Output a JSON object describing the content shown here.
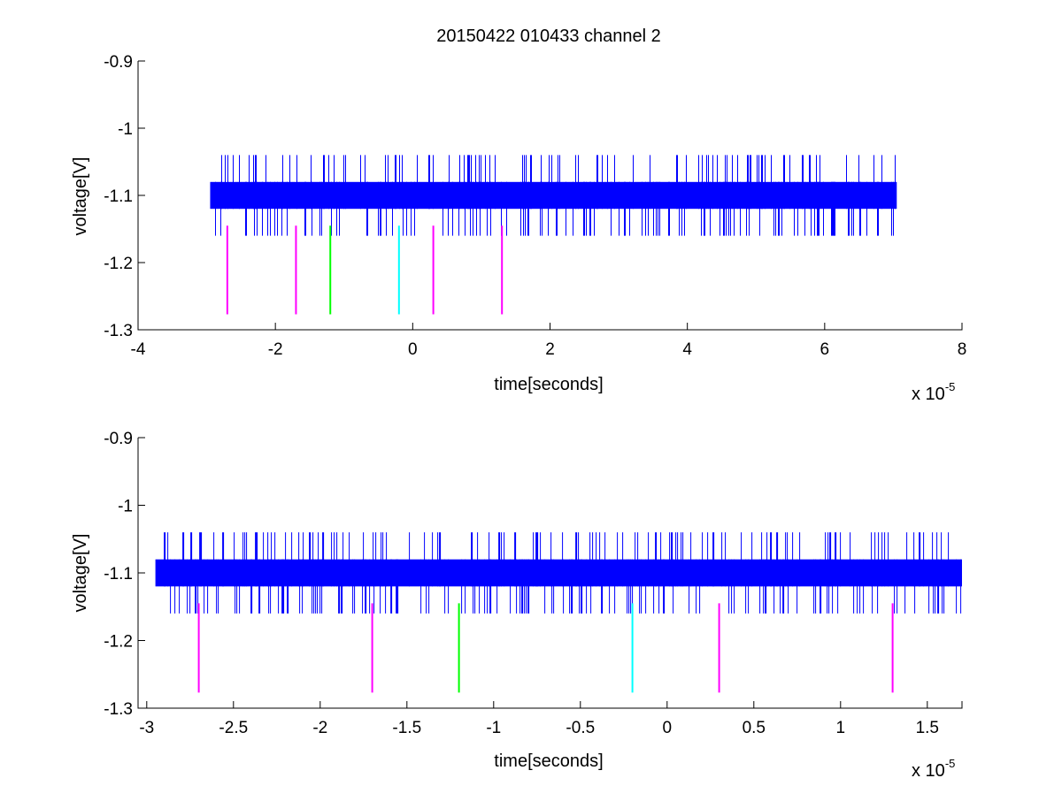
{
  "figure_title": "20150422 010433 channel 2",
  "chart_data": [
    {
      "type": "line",
      "title": "20150422 010433 channel 2",
      "xlabel": "time[seconds]",
      "ylabel": "voltage[V]",
      "x_exponent_label": "x 10",
      "x_exponent_power": "-5",
      "xlim": [
        -4,
        8
      ],
      "ylim": [
        -1.3,
        -0.9
      ],
      "xticks": [
        -4,
        -2,
        0,
        2,
        4,
        6,
        8
      ],
      "xtick_labels": [
        "-4",
        "-2",
        "0",
        "2",
        "4",
        "6",
        "8"
      ],
      "yticks": [
        -1.3,
        -1.2,
        -1.1,
        -1,
        -0.9
      ],
      "ytick_labels": [
        "-1.3",
        "-1.2",
        "-1.1",
        "-1",
        "-0.9"
      ],
      "grid": false,
      "signal": {
        "name": "",
        "color": "#0000ff",
        "x_start": -2.95,
        "x_end": 7.05,
        "band_low": -1.12,
        "band_high": -1.08,
        "spike_high": -1.04,
        "spike_low": -1.16
      },
      "markers": [
        {
          "x": -2.7,
          "y_top": -1.145,
          "y_bottom": -1.277,
          "color": "#ff00ff"
        },
        {
          "x": -1.7,
          "y_top": -1.145,
          "y_bottom": -1.277,
          "color": "#ff00ff"
        },
        {
          "x": -1.2,
          "y_top": -1.145,
          "y_bottom": -1.277,
          "color": "#00ff00"
        },
        {
          "x": -0.2,
          "y_top": -1.145,
          "y_bottom": -1.277,
          "color": "#00ffff"
        },
        {
          "x": 0.3,
          "y_top": -1.145,
          "y_bottom": -1.277,
          "color": "#ff00ff"
        },
        {
          "x": 1.3,
          "y_top": -1.145,
          "y_bottom": -1.277,
          "color": "#ff00ff"
        }
      ]
    },
    {
      "type": "line",
      "title": "",
      "xlabel": "time[seconds]",
      "ylabel": "voltage[V]",
      "x_exponent_label": "x 10",
      "x_exponent_power": "-5",
      "xlim": [
        -3.05,
        1.7
      ],
      "ylim": [
        -1.3,
        -0.9
      ],
      "xticks": [
        -3,
        -2.5,
        -2,
        -1.5,
        -1,
        -0.5,
        0,
        0.5,
        1,
        1.5
      ],
      "xtick_labels": [
        "-3",
        "-2.5",
        "-2",
        "-1.5",
        "-1",
        "-0.5",
        "0",
        "0.5",
        "1",
        "1.5"
      ],
      "yticks": [
        -1.3,
        -1.2,
        -1.1,
        -1,
        -0.9
      ],
      "ytick_labels": [
        "-1.3",
        "-1.2",
        "-1.1",
        "-1",
        "-0.9"
      ],
      "grid": false,
      "signal": {
        "name": "",
        "color": "#0000ff",
        "x_start": -2.95,
        "x_end": 1.7,
        "band_low": -1.12,
        "band_high": -1.08,
        "spike_high": -1.04,
        "spike_low": -1.16
      },
      "markers": [
        {
          "x": -2.7,
          "y_top": -1.145,
          "y_bottom": -1.277,
          "color": "#ff00ff"
        },
        {
          "x": -1.7,
          "y_top": -1.145,
          "y_bottom": -1.277,
          "color": "#ff00ff"
        },
        {
          "x": -1.2,
          "y_top": -1.145,
          "y_bottom": -1.277,
          "color": "#00ff00"
        },
        {
          "x": -0.2,
          "y_top": -1.145,
          "y_bottom": -1.277,
          "color": "#00ffff"
        },
        {
          "x": 0.3,
          "y_top": -1.145,
          "y_bottom": -1.277,
          "color": "#ff00ff"
        },
        {
          "x": 1.3,
          "y_top": -1.145,
          "y_bottom": -1.277,
          "color": "#ff00ff"
        }
      ]
    }
  ]
}
